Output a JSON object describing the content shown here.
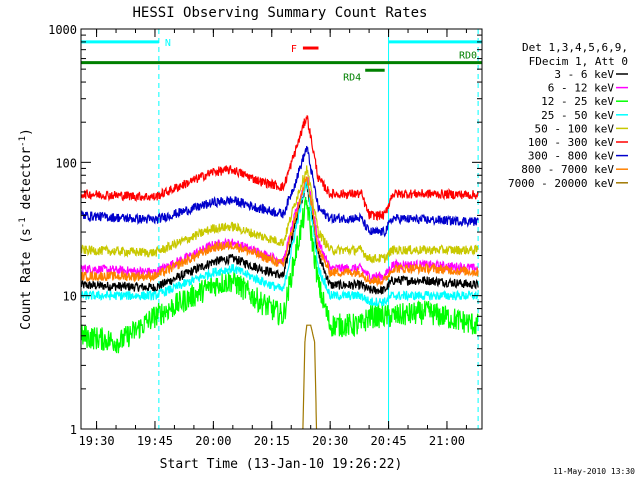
{
  "chart_data": {
    "type": "line",
    "title": "HESSI Observing Summary Count Rates",
    "xlabel": "Start Time (13-Jan-10 19:26:22)",
    "ylabel_main": "Count Rate (s",
    "ylabel_sup1": "-1",
    "ylabel_mid": " detector",
    "ylabel_sup2": "-1",
    "ylabel_end": ")",
    "footer": "11-May-2010 13:30",
    "yscale": "log",
    "ylim": [
      1,
      1000
    ],
    "xlim": [
      "19:26:22",
      "21:09:00"
    ],
    "x_ticks": [
      "19:30",
      "19:45",
      "20:00",
      "20:15",
      "20:30",
      "20:45",
      "21:00"
    ],
    "y_ticks": [
      "1",
      "10",
      "100",
      "1000"
    ],
    "legend": {
      "placement": "right",
      "header1": "Det 1,3,4,5,6,9,",
      "header2": "FDecim 1, Att 0"
    },
    "series": [
      {
        "name": "3 - 6 keV",
        "color": "#000000",
        "x": [
          "19:26",
          "19:45",
          "20:00",
          "20:05",
          "20:12",
          "20:18",
          "20:21",
          "20:24",
          "20:27",
          "20:30",
          "20:38",
          "20:40",
          "20:44",
          "20:46",
          "20:55",
          "21:08"
        ],
        "y": [
          12,
          11.5,
          18,
          19,
          16,
          14,
          35,
          70,
          20,
          12,
          12,
          11,
          11,
          13,
          13,
          12
        ]
      },
      {
        "name": "6 - 12 keV",
        "color": "#ff00ff",
        "x": [
          "19:26",
          "19:45",
          "20:00",
          "20:05",
          "20:12",
          "20:18",
          "20:21",
          "20:24",
          "20:27",
          "20:30",
          "20:38",
          "20:40",
          "20:44",
          "20:46",
          "20:55",
          "21:08"
        ],
        "y": [
          16,
          15,
          24,
          25,
          21,
          18,
          40,
          80,
          25,
          16,
          16,
          14,
          14,
          17,
          17,
          16
        ]
      },
      {
        "name": "12 - 25 keV",
        "color": "#00ff00",
        "x": [
          "19:26",
          "19:36",
          "19:45",
          "20:00",
          "20:05",
          "20:12",
          "20:18",
          "20:21",
          "20:24",
          "20:27",
          "20:30",
          "20:38",
          "20:40",
          "20:44",
          "20:46",
          "20:55",
          "21:08"
        ],
        "y": [
          5,
          4.5,
          7,
          12,
          13,
          9,
          7,
          20,
          50,
          12,
          6,
          6,
          7,
          7,
          7,
          7.5,
          6
        ]
      },
      {
        "name": "25 - 50 keV",
        "color": "#00ffff",
        "x": [
          "19:26",
          "19:45",
          "20:00",
          "20:05",
          "20:12",
          "20:18",
          "20:21",
          "20:24",
          "20:27",
          "20:30",
          "20:38",
          "20:40",
          "20:44",
          "20:46",
          "20:55",
          "21:08"
        ],
        "y": [
          10,
          10,
          15,
          16,
          13,
          11,
          30,
          75,
          16,
          10,
          10,
          9,
          9,
          10,
          10,
          10
        ]
      },
      {
        "name": "50 - 100 keV",
        "color": "#c8c800",
        "x": [
          "19:26",
          "19:45",
          "20:00",
          "20:05",
          "20:12",
          "20:18",
          "20:21",
          "20:24",
          "20:27",
          "20:30",
          "20:38",
          "20:40",
          "20:44",
          "20:46",
          "20:55",
          "21:08"
        ],
        "y": [
          22,
          21,
          32,
          33,
          28,
          25,
          50,
          90,
          30,
          22,
          22,
          19,
          19,
          22,
          22,
          22
        ]
      },
      {
        "name": "100 - 300 keV",
        "color": "#ff0000",
        "x": [
          "19:26",
          "19:45",
          "20:00",
          "20:05",
          "20:12",
          "20:18",
          "20:21",
          "20:24",
          "20:27",
          "20:30",
          "20:38",
          "20:40",
          "20:44",
          "20:46",
          "20:55",
          "21:08"
        ],
        "y": [
          58,
          55,
          85,
          88,
          72,
          65,
          120,
          225,
          75,
          58,
          58,
          40,
          40,
          58,
          58,
          57
        ]
      },
      {
        "name": "300 - 800 keV",
        "color": "#0000cc",
        "x": [
          "19:26",
          "19:45",
          "20:00",
          "20:05",
          "20:12",
          "20:18",
          "20:21",
          "20:24",
          "20:27",
          "20:30",
          "20:38",
          "20:40",
          "20:44",
          "20:46",
          "20:55",
          "21:08"
        ],
        "y": [
          40,
          37,
          50,
          52,
          45,
          41,
          70,
          130,
          45,
          38,
          38,
          30,
          30,
          38,
          37,
          36
        ]
      },
      {
        "name": "800 - 7000 keV",
        "color": "#ff8000",
        "x": [
          "19:26",
          "19:45",
          "20:00",
          "20:05",
          "20:12",
          "20:18",
          "20:21",
          "20:24",
          "20:27",
          "20:30",
          "20:38",
          "20:40",
          "20:44",
          "20:46",
          "20:55",
          "21:08"
        ],
        "y": [
          14,
          14,
          23,
          24,
          20,
          17,
          38,
          78,
          22,
          15,
          15,
          13,
          13,
          16,
          16,
          15
        ]
      },
      {
        "name": "7000 - 20000 keV",
        "color": "#a07800",
        "x": [
          "20:23",
          "20:23.5",
          "20:24",
          "20:25",
          "20:26",
          "20:26.5"
        ],
        "y": [
          1,
          4.5,
          6,
          6,
          4.5,
          1
        ]
      }
    ],
    "annotations": [
      {
        "label": "N",
        "color": "#00ffff",
        "x0": "19:26",
        "x1": "19:46",
        "y": 800
      },
      {
        "label": "",
        "color": "#00ffff",
        "x0": "20:45",
        "x1": "21:09",
        "y": 800
      },
      {
        "label": "F",
        "color": "#ff0000",
        "x0": "20:23",
        "x1": "20:27",
        "y": 720
      },
      {
        "label": "RD0",
        "color": "#008000",
        "x0": "19:26",
        "x1": "21:09",
        "y": 560
      },
      {
        "label": "RD4",
        "color": "#008000",
        "x0": "20:39",
        "x1": "20:44",
        "y": 490
      }
    ],
    "vertical_lines": [
      {
        "x": "19:46",
        "color": "#00ffff",
        "style": "dashed"
      },
      {
        "x": "20:45",
        "color": "#00ffff",
        "style": "solid"
      },
      {
        "x": "21:08",
        "color": "#00ffff",
        "style": "dashed"
      }
    ]
  }
}
